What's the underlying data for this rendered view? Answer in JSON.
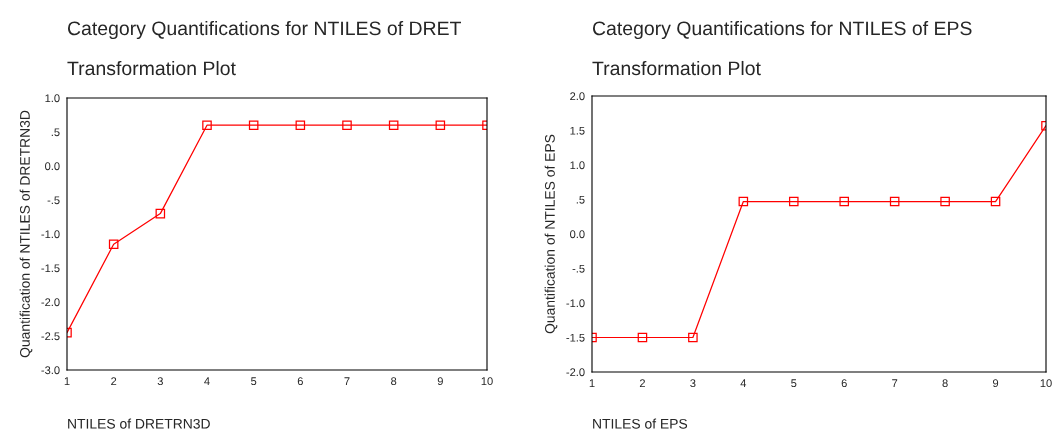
{
  "chart_data": [
    {
      "type": "line",
      "title": "Category Quantifications for NTILES of DRET",
      "subtitle": "Transformation Plot",
      "xlabel": "NTILES of DRETRN3D",
      "ylabel": "Quantification of NTILES of DRETRN3D",
      "marker": "square",
      "line_style": "solid",
      "grid": false,
      "legend": false,
      "x": [
        1,
        2,
        3,
        4,
        5,
        6,
        7,
        8,
        9,
        10
      ],
      "series": [
        {
          "color": "#ff0000",
          "values": [
            -2.45,
            -1.15,
            -0.7,
            0.6,
            0.6,
            0.6,
            0.6,
            0.6,
            0.6,
            0.6
          ]
        }
      ],
      "xlim": [
        1,
        10
      ],
      "xticks": [
        1,
        2,
        3,
        4,
        5,
        6,
        7,
        8,
        9,
        10
      ],
      "ylim": [
        -3.0,
        1.0
      ],
      "yticks": [
        {
          "value": -3.0,
          "label": "-3.0"
        },
        {
          "value": -2.5,
          "label": "-2.5"
        },
        {
          "value": -2.0,
          "label": "-2.0"
        },
        {
          "value": -1.5,
          "label": "-1.5"
        },
        {
          "value": -1.0,
          "label": "-1.0"
        },
        {
          "value": -0.5,
          "label": "-.5"
        },
        {
          "value": 0.0,
          "label": "0.0"
        },
        {
          "value": 0.5,
          "label": ".5"
        },
        {
          "value": 1.0,
          "label": "1.0"
        }
      ]
    },
    {
      "type": "line",
      "title": "Category Quantifications for NTILES of EPS",
      "subtitle": "Transformation Plot",
      "xlabel": "NTILES of EPS",
      "ylabel": "Quantification of NTILES of EPS",
      "marker": "square",
      "line_style": "solid",
      "grid": false,
      "legend": false,
      "x": [
        1,
        2,
        3,
        4,
        5,
        6,
        7,
        8,
        9,
        10
      ],
      "series": [
        {
          "color": "#ff0000",
          "values": [
            -1.5,
            -1.5,
            -1.5,
            0.47,
            0.47,
            0.47,
            0.47,
            0.47,
            0.47,
            1.57
          ]
        }
      ],
      "xlim": [
        1,
        10
      ],
      "xticks": [
        1,
        2,
        3,
        4,
        5,
        6,
        7,
        8,
        9,
        10
      ],
      "ylim": [
        -2.0,
        2.0
      ],
      "yticks": [
        {
          "value": -2.0,
          "label": "-2.0"
        },
        {
          "value": -1.5,
          "label": "-1.5"
        },
        {
          "value": -1.0,
          "label": "-1.0"
        },
        {
          "value": -0.5,
          "label": "-.5"
        },
        {
          "value": 0.0,
          "label": "0.0"
        },
        {
          "value": 0.5,
          "label": ".5"
        },
        {
          "value": 1.0,
          "label": "1.0"
        },
        {
          "value": 1.5,
          "label": "1.5"
        },
        {
          "value": 2.0,
          "label": "2.0"
        }
      ]
    }
  ]
}
